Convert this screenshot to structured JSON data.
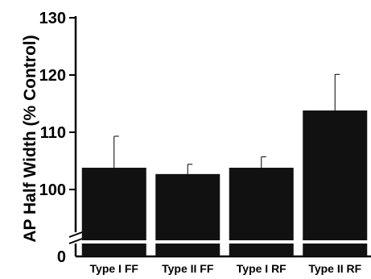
{
  "chart_data": {
    "type": "bar",
    "title": "",
    "xlabel": "",
    "ylabel": "AP Half Width (% Control)",
    "categories": [
      "Type I FF",
      "Type II FF",
      "Type I RF",
      "Type II RF"
    ],
    "values": [
      103.8,
      102.7,
      103.8,
      113.8
    ],
    "errors": [
      5.5,
      1.7,
      1.9,
      6.3
    ],
    "ylim": [
      0,
      130
    ],
    "axis_break": true,
    "yticks": [
      100,
      110,
      120,
      130
    ],
    "yticks_below_break": [
      0
    ],
    "ytick_labels": [
      "100",
      "110",
      "120",
      "130"
    ],
    "ytick_labels_below_break": [
      "0"
    ],
    "grid": false,
    "bar_color": "#111111"
  }
}
